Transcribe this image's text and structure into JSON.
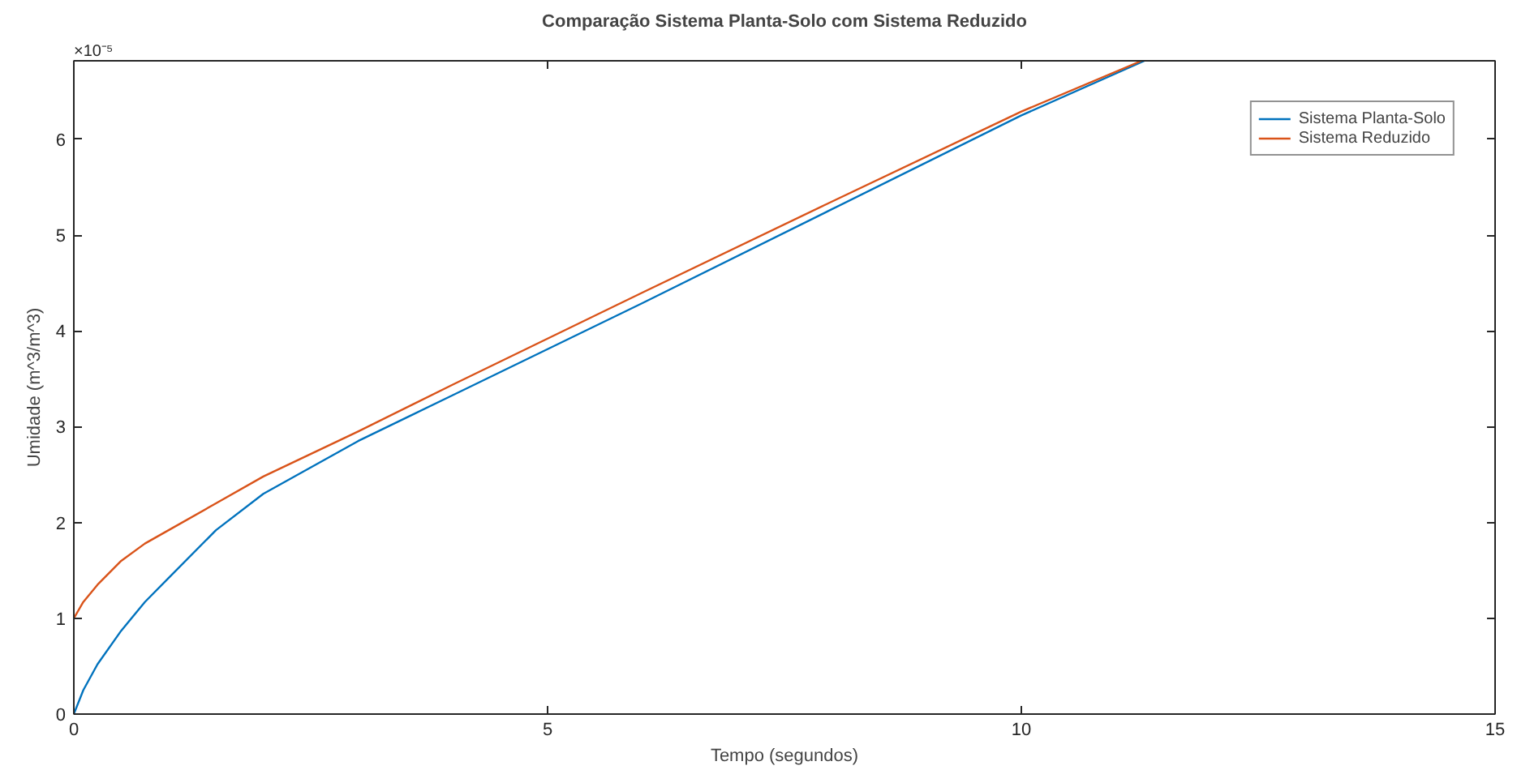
{
  "chart_data": {
    "type": "line",
    "title": "Comparação Sistema Planta-Solo com Sistema Reduzido",
    "xlabel": "Tempo (segundos)",
    "ylabel": "Umidade (m^3/m^3)",
    "annotations": [
      "×10⁻⁵"
    ],
    "xlim": [
      0,
      15
    ],
    "xticks": [
      0,
      5,
      10,
      15
    ],
    "ylim": [
      0,
      6.82
    ],
    "yticks": [
      0,
      1,
      2,
      3,
      4,
      5,
      6
    ],
    "grid": false,
    "legend": "top right",
    "line_style": "solid",
    "series": [
      {
        "name": "Sistema Planta-Solo",
        "color": "#0072bd",
        "x": [
          0,
          0.1,
          0.25,
          0.5,
          0.75,
          1,
          1.5,
          2,
          3,
          4,
          5,
          6,
          8,
          10,
          11.3
        ],
        "values": [
          0,
          0.25,
          0.52,
          0.87,
          1.17,
          1.42,
          1.92,
          2.3,
          2.85,
          3.33,
          3.81,
          4.29,
          5.27,
          6.25,
          6.82
        ]
      },
      {
        "name": "Sistema Reduzido",
        "color": "#d95319",
        "x": [
          0,
          0.1,
          0.25,
          0.5,
          0.75,
          1,
          1.5,
          2,
          3,
          4,
          5,
          6,
          8,
          10,
          11.27
        ],
        "values": [
          1,
          1.17,
          1.35,
          1.6,
          1.78,
          1.92,
          2.2,
          2.48,
          2.95,
          3.44,
          3.92,
          4.4,
          5.35,
          6.29,
          6.82
        ]
      }
    ]
  }
}
